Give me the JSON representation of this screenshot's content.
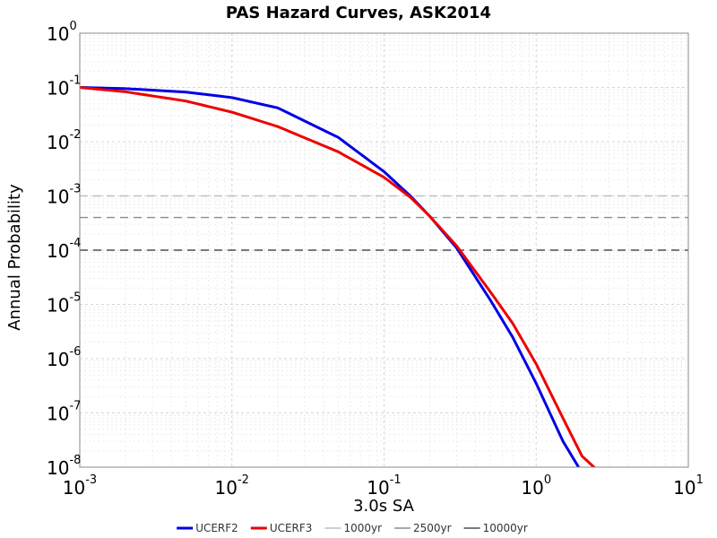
{
  "chart_data": {
    "type": "line",
    "title": "PAS Hazard Curves, ASK2014",
    "xlabel": "3.0s SA",
    "ylabel": "Annual Probability",
    "xscale": "log",
    "yscale": "log",
    "xlim": [
      0.001,
      10
    ],
    "ylim": [
      1e-08,
      1
    ],
    "grid": true,
    "legend_position": "bottom",
    "x_ticks": [
      {
        "base": "10",
        "exp": "-3",
        "value": 0.001
      },
      {
        "base": "10",
        "exp": "-2",
        "value": 0.01
      },
      {
        "base": "10",
        "exp": "-1",
        "value": 0.1
      },
      {
        "base": "10",
        "exp": "0",
        "value": 1
      },
      {
        "base": "10",
        "exp": "1",
        "value": 10
      }
    ],
    "y_ticks": [
      {
        "base": "10",
        "exp": "0",
        "value": 1
      },
      {
        "base": "10",
        "exp": "-1",
        "value": 0.1
      },
      {
        "base": "10",
        "exp": "-2",
        "value": 0.01
      },
      {
        "base": "10",
        "exp": "-3",
        "value": 0.001
      },
      {
        "base": "10",
        "exp": "-4",
        "value": 0.0001
      },
      {
        "base": "10",
        "exp": "-5",
        "value": 1e-05
      },
      {
        "base": "10",
        "exp": "-6",
        "value": 1e-06
      },
      {
        "base": "10",
        "exp": "-7",
        "value": 1e-07
      },
      {
        "base": "10",
        "exp": "-8",
        "value": 1e-08
      }
    ],
    "series": [
      {
        "name": "UCERF2",
        "color": "#0000e6",
        "style": "solid",
        "x": [
          0.001,
          0.002,
          0.005,
          0.01,
          0.02,
          0.05,
          0.1,
          0.15,
          0.2,
          0.3,
          0.5,
          0.7,
          1.0,
          1.5,
          1.9
        ],
        "y": [
          0.1,
          0.095,
          0.082,
          0.065,
          0.042,
          0.012,
          0.0028,
          0.00098,
          0.00042,
          0.00011,
          1.2e-05,
          2.5e-06,
          3.5e-07,
          3e-08,
          1e-08
        ]
      },
      {
        "name": "UCERF3",
        "color": "#ee0000",
        "style": "solid",
        "x": [
          0.001,
          0.002,
          0.005,
          0.01,
          0.02,
          0.05,
          0.1,
          0.15,
          0.2,
          0.3,
          0.5,
          0.7,
          1.0,
          1.5,
          2.0,
          2.4
        ],
        "y": [
          0.1,
          0.083,
          0.056,
          0.035,
          0.019,
          0.0065,
          0.0022,
          0.00093,
          0.00042,
          0.00012,
          1.7e-05,
          4.5e-06,
          8e-07,
          8e-08,
          1.6e-08,
          1e-08
        ]
      },
      {
        "name": "1000yr",
        "color": "#bfbfbf",
        "style": "dashed",
        "x": [
          0.001,
          10
        ],
        "y": [
          0.001,
          0.001
        ]
      },
      {
        "name": "2500yr",
        "color": "#8c8c8c",
        "style": "dashed",
        "x": [
          0.001,
          10
        ],
        "y": [
          0.0004,
          0.0004
        ]
      },
      {
        "name": "10000yr",
        "color": "#4d4d4d",
        "style": "dashed",
        "x": [
          0.001,
          10
        ],
        "y": [
          0.0001,
          0.0001
        ]
      }
    ]
  }
}
